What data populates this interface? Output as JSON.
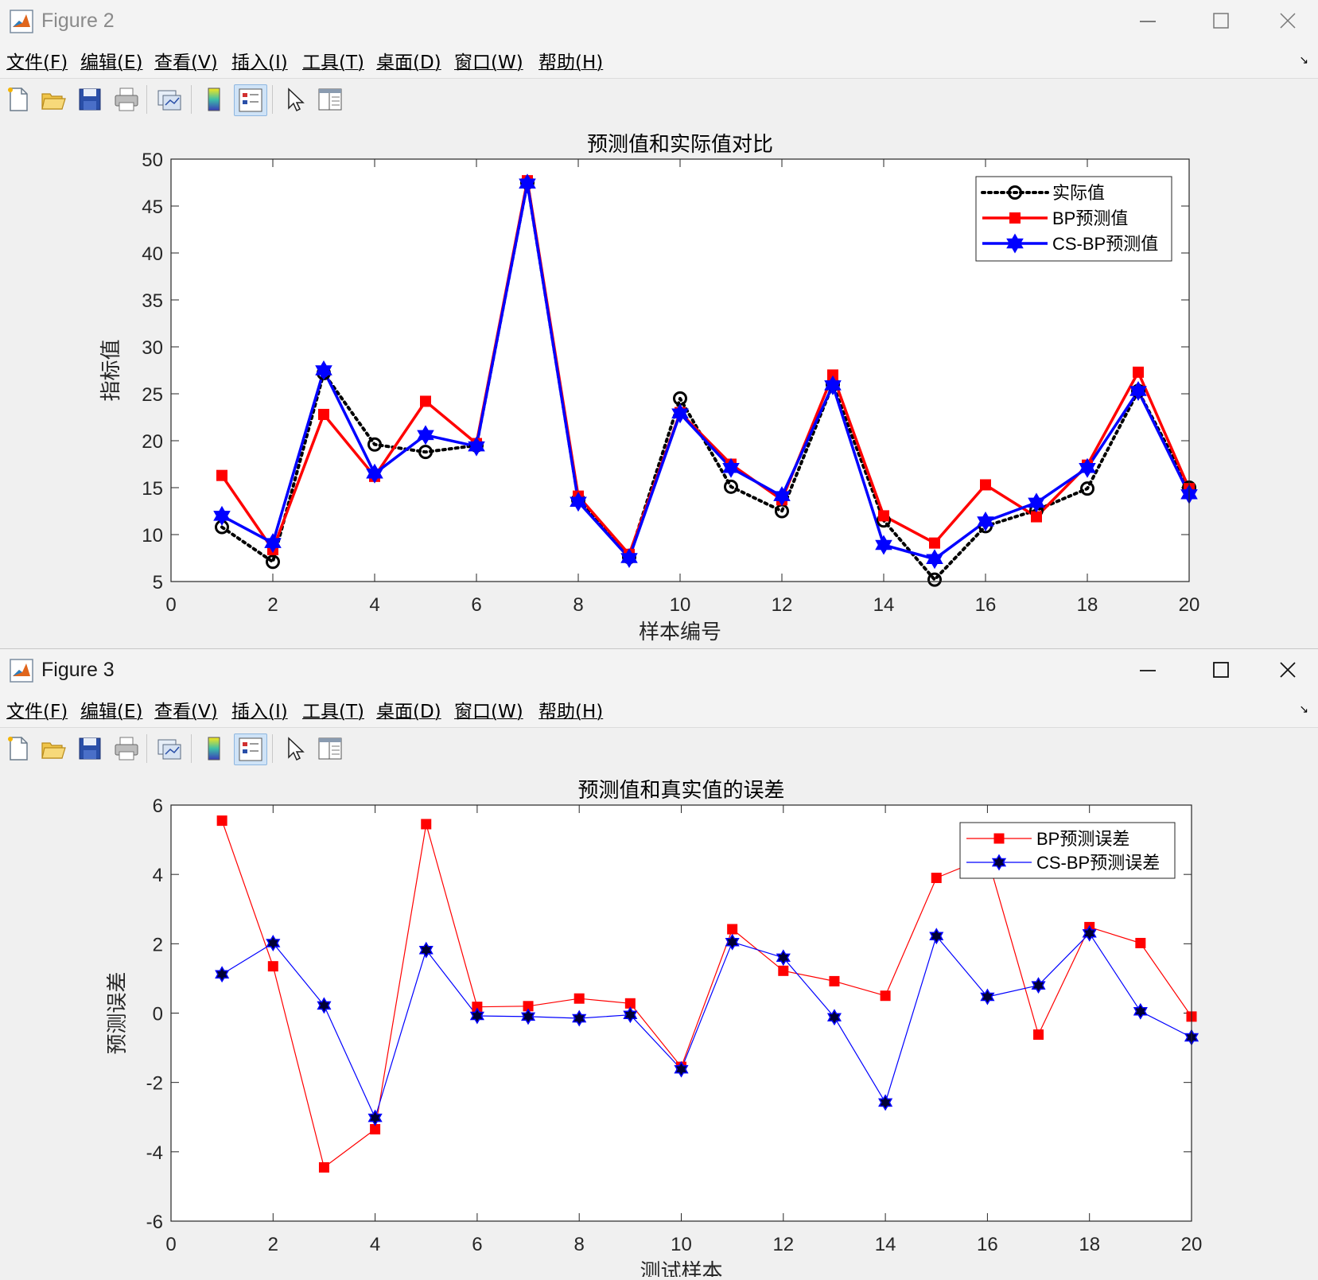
{
  "menu": [
    "文件(F)",
    "编辑(E)",
    "查看(V)",
    "插入(I)",
    "工具(T)",
    "桌面(D)",
    "窗口(W)",
    "帮助(H)"
  ],
  "toolbar_icons": [
    "new-figure-icon",
    "open-file-icon",
    "save-icon",
    "print-icon",
    "link-plot-icon",
    "insert-colorbar-icon",
    "insert-legend-icon",
    "edit-plot-icon",
    "property-inspector-icon"
  ],
  "fig2": {
    "window_title": "Figure 2",
    "chart_data": {
      "type": "line",
      "title": "预测值和实际值对比",
      "xlabel": "样本编号",
      "ylabel": "指标值",
      "xlim": [
        0,
        20
      ],
      "ylim": [
        5,
        50
      ],
      "xticks": [
        0,
        2,
        4,
        6,
        8,
        10,
        12,
        14,
        16,
        18,
        20
      ],
      "yticks": [
        5,
        10,
        15,
        20,
        25,
        30,
        35,
        40,
        45,
        50
      ],
      "grid": false,
      "legend_position": "top-right",
      "x": [
        1,
        2,
        3,
        4,
        5,
        6,
        7,
        8,
        9,
        10,
        11,
        12,
        13,
        14,
        15,
        16,
        17,
        18,
        19,
        20
      ],
      "series": [
        {
          "name": "实际值",
          "color": "#000000",
          "line": "dotted",
          "marker": "circle",
          "values": [
            10.8,
            7.1,
            27.2,
            19.6,
            18.8,
            19.5,
            47.5,
            13.7,
            7.6,
            24.5,
            15.1,
            12.5,
            26.0,
            11.5,
            5.2,
            10.9,
            12.6,
            14.9,
            25.3,
            15.0
          ]
        },
        {
          "name": "BP预测值",
          "color": "#ff0000",
          "line": "solid",
          "marker": "square",
          "values": [
            16.3,
            8.4,
            22.8,
            16.2,
            24.2,
            19.7,
            47.7,
            14.1,
            7.9,
            23.0,
            17.5,
            13.7,
            27.0,
            12.0,
            9.1,
            15.3,
            11.9,
            17.4,
            27.3,
            14.9
          ]
        },
        {
          "name": "CS-BP预测值",
          "color": "#0000ff",
          "line": "solid",
          "marker": "hexagram",
          "values": [
            12.0,
            9.1,
            27.5,
            16.5,
            20.6,
            19.4,
            47.4,
            13.5,
            7.5,
            22.9,
            17.1,
            14.1,
            25.9,
            8.9,
            7.4,
            11.4,
            13.4,
            17.1,
            25.3,
            14.3
          ]
        }
      ]
    }
  },
  "fig3": {
    "window_title": "Figure 3",
    "chart_data": {
      "type": "line",
      "title": "预测值和真实值的误差",
      "xlabel": "测试样本",
      "ylabel": "预测误差",
      "xlim": [
        0,
        20
      ],
      "ylim": [
        -6,
        6
      ],
      "xticks": [
        0,
        2,
        4,
        6,
        8,
        10,
        12,
        14,
        16,
        18,
        20
      ],
      "yticks": [
        -6,
        -4,
        -2,
        0,
        2,
        4,
        6
      ],
      "grid": false,
      "legend_position": "top-right",
      "x": [
        1,
        2,
        3,
        4,
        5,
        6,
        7,
        8,
        9,
        10,
        11,
        12,
        13,
        14,
        15,
        16,
        17,
        18,
        19,
        20
      ],
      "series": [
        {
          "name": "BP预测误差",
          "color": "#ff0000",
          "line": "thin",
          "marker": "square",
          "values": [
            5.55,
            1.35,
            -4.45,
            -3.35,
            5.45,
            0.18,
            0.2,
            0.42,
            0.28,
            -1.55,
            2.42,
            1.22,
            0.92,
            0.5,
            3.9,
            4.5,
            -0.62,
            2.48,
            2.02,
            -0.1
          ]
        },
        {
          "name": "CS-BP预测误差",
          "color": "#0000ff",
          "line": "thin",
          "marker": "hexagram",
          "values": [
            1.12,
            2.02,
            0.22,
            -3.02,
            1.82,
            -0.08,
            -0.1,
            -0.15,
            -0.05,
            -1.62,
            2.05,
            1.6,
            -0.12,
            -2.58,
            2.22,
            0.47,
            0.8,
            2.3,
            0.05,
            -0.7
          ]
        }
      ]
    }
  }
}
